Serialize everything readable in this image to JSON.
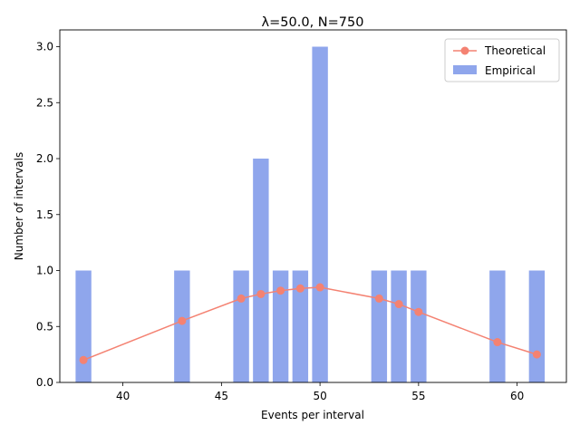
{
  "chart_data": {
    "type": "bar",
    "title": "λ=50.0, N=750",
    "xlabel": "Events per interval",
    "ylabel": "Number of intervals",
    "xlim": [
      36.8,
      62.5
    ],
    "ylim": [
      0,
      3.15
    ],
    "xticks": [
      40,
      45,
      50,
      55,
      60
    ],
    "xtick_labels": [
      "40",
      "45",
      "50",
      "55",
      "60"
    ],
    "yticks": [
      0,
      0.5,
      1.0,
      1.5,
      2.0,
      2.5,
      3.0
    ],
    "ytick_labels": [
      "0.0",
      "0.5",
      "1.0",
      "1.5",
      "2.0",
      "2.5",
      "3.0"
    ],
    "grid": false,
    "legend_position": "top-right",
    "series": [
      {
        "name": "Empirical",
        "kind": "bar",
        "color": "#8fa6ec",
        "x": [
          38,
          43,
          46,
          47,
          48,
          49,
          50,
          53,
          54,
          55,
          59,
          61
        ],
        "values": [
          1,
          1,
          1,
          2,
          1,
          1,
          3,
          1,
          1,
          1,
          1,
          1
        ]
      },
      {
        "name": "Theoretical",
        "kind": "line",
        "color": "#f48272",
        "x": [
          38,
          43,
          46,
          47,
          48,
          49,
          50,
          53,
          54,
          55,
          59,
          61
        ],
        "values": [
          0.2,
          0.55,
          0.75,
          0.79,
          0.82,
          0.84,
          0.85,
          0.75,
          0.7,
          0.63,
          0.36,
          0.25
        ]
      }
    ]
  }
}
